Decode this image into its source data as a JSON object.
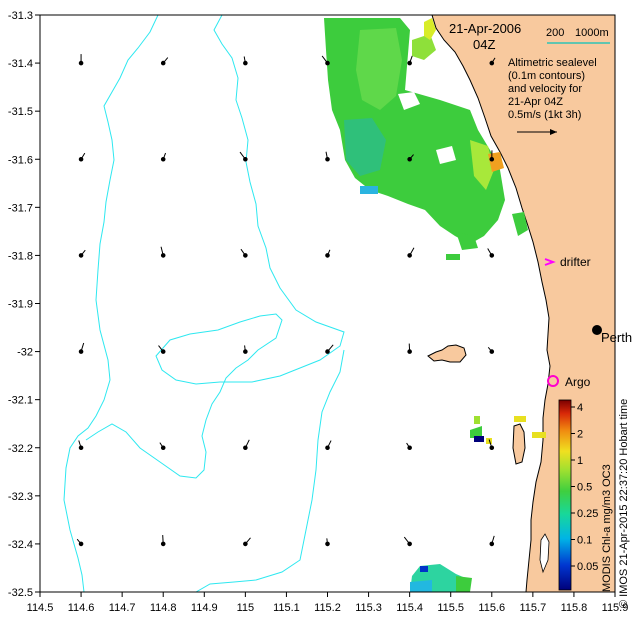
{
  "map": {
    "date_label": "21-Apr-2006",
    "time_label": "04Z",
    "scale_bar": {
      "label_left": "200",
      "label_right": "1000m",
      "color": "#2ec4b6"
    },
    "legend_text": [
      "Altimetric sealevel",
      "(0.1m contours)",
      "and velocity for",
      "21-Apr 04Z",
      "0.5m/s (1kt 3h)"
    ],
    "credit": "© IMOS 21-Apr-2015 22:37:20 Hobart time",
    "colorbar_title": "MODIS Chl-a mg/m3 OC3",
    "colorbar_ticks": [
      "4",
      "2",
      "1",
      "0.5",
      "0.25",
      "0.1",
      "0.05"
    ],
    "markers": {
      "perth": "Perth",
      "drifter": "drifter",
      "argo": "Argo"
    },
    "x_ticks": [
      "114.5",
      "114.6",
      "114.7",
      "114.8",
      "114.9",
      "115",
      "115.1",
      "115.2",
      "115.3",
      "115.4",
      "115.5",
      "115.6",
      "115.7",
      "115.8",
      "115.9"
    ],
    "y_ticks": [
      "-31.3",
      "-31.4",
      "-31.5",
      "-31.6",
      "-31.7",
      "-31.8",
      "-31.9",
      "-32",
      "-32.1",
      "-32.2",
      "-32.3",
      "-32.4",
      "-32.5"
    ],
    "colors": {
      "land": "#f8c99e",
      "contour": "#2ee8f0",
      "drifter": "#ff00ff",
      "argo": "#ff00cc"
    },
    "extent": {
      "lon": [
        114.5,
        115.9
      ],
      "lat": [
        -32.5,
        -31.3
      ]
    }
  }
}
